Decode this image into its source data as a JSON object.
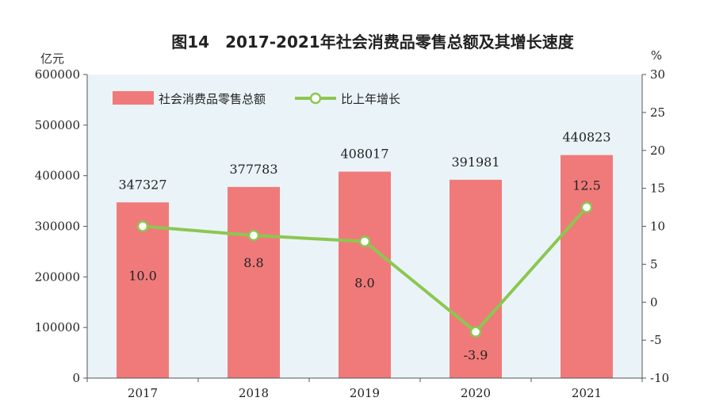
{
  "chart_data": {
    "type": "bar",
    "title": "图14　2017-2021年社会消费品零售总额及其增长速度",
    "categories": [
      "2017",
      "2018",
      "2019",
      "2020",
      "2021"
    ],
    "series": [
      {
        "name": "社会消费品零售总额",
        "type": "bar",
        "axis": "left",
        "values": [
          347327,
          377783,
          408017,
          391981,
          440823
        ],
        "labels": [
          "347327",
          "377783",
          "408017",
          "391981",
          "440823"
        ]
      },
      {
        "name": "比上年增长",
        "type": "line",
        "axis": "right",
        "values": [
          10.0,
          8.8,
          8.0,
          -3.9,
          12.5
        ],
        "labels": [
          "10.0",
          "8.8",
          "8.0",
          "-3.9",
          "12.5"
        ]
      }
    ],
    "y_left": {
      "unit": "亿元",
      "range": [
        0,
        600000
      ],
      "ticks": [
        "0",
        "100000",
        "200000",
        "300000",
        "400000",
        "500000",
        "600000"
      ]
    },
    "y_right": {
      "unit": "%",
      "range": [
        -10,
        30
      ],
      "ticks": [
        "-10",
        "-5",
        "0",
        "5",
        "10",
        "15",
        "20",
        "25",
        "30"
      ]
    },
    "legend": "top-left",
    "grid": false,
    "colors": {
      "plot_background": "#eaf4f8",
      "bar": "#f07a7a",
      "line": "#8cc751",
      "marker_fill": "#ffffff"
    }
  }
}
